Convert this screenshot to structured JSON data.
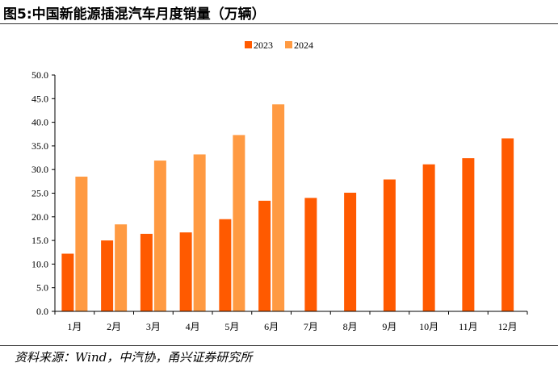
{
  "title": "图5:中国新能源插混汽车月度销量（万辆）",
  "source": "资料来源：Wind，中汽协，甬兴证券研究所",
  "chart_data": {
    "type": "bar",
    "categories": [
      "1月",
      "2月",
      "3月",
      "4月",
      "5月",
      "6月",
      "7月",
      "8月",
      "9月",
      "10月",
      "11月",
      "12月"
    ],
    "series": [
      {
        "name": "2023",
        "color": "#FF5A00",
        "values": [
          12.2,
          15.0,
          16.4,
          16.7,
          19.5,
          23.4,
          24.0,
          25.1,
          27.9,
          31.1,
          32.4,
          36.6
        ]
      },
      {
        "name": "2024",
        "color": "#FF9A42",
        "values": [
          28.5,
          18.4,
          31.9,
          33.2,
          37.3,
          43.8,
          null,
          null,
          null,
          null,
          null,
          null
        ]
      }
    ],
    "ylim": [
      0,
      50
    ],
    "yticks": [
      "0.0",
      "5.0",
      "10.0",
      "15.0",
      "20.0",
      "25.0",
      "30.0",
      "35.0",
      "40.0",
      "45.0",
      "50.0"
    ],
    "legend_position": "top-center",
    "grid": false
  }
}
